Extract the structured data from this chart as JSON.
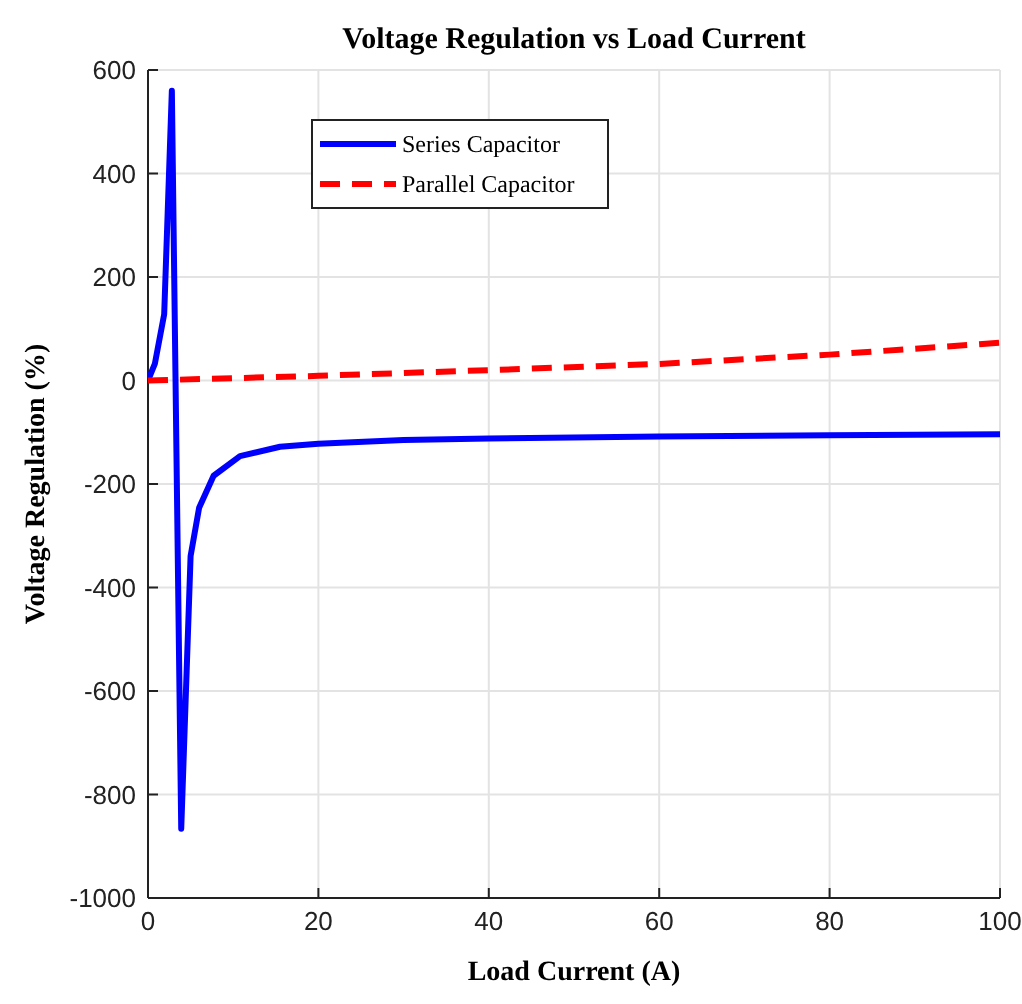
{
  "chart_data": {
    "type": "line",
    "title": "Voltage Regulation vs Load Current",
    "xlabel": "Load Current (A)",
    "ylabel": "Voltage Regulation (%)",
    "xlim": [
      0,
      100
    ],
    "ylim": [
      -1000,
      600
    ],
    "xticks": [
      0,
      20,
      40,
      60,
      80,
      100
    ],
    "yticks": [
      -1000,
      -800,
      -600,
      -400,
      -200,
      0,
      200,
      400,
      600
    ],
    "grid": true,
    "legend": "top left",
    "series": [
      {
        "name": "Series Capacitor",
        "color": "#0000ff",
        "line_style": "solid",
        "x": [
          0,
          0.8,
          1.9,
          2.8,
          3.9,
          5,
          6,
          7.7,
          10.8,
          15.5,
          20,
          30,
          40,
          60,
          80,
          100
        ],
        "values": [
          0,
          32,
          128,
          560,
          -866,
          -339,
          -246,
          -184,
          -146,
          -128,
          -122,
          -115,
          -112,
          -108,
          -106,
          -104
        ]
      },
      {
        "name": "Parallel Capacitor",
        "color": "#ff0000",
        "line_style": "dashed",
        "x": [
          0,
          20,
          40,
          60,
          80,
          100
        ],
        "values": [
          0,
          9,
          20,
          32,
          50,
          73
        ]
      }
    ]
  }
}
